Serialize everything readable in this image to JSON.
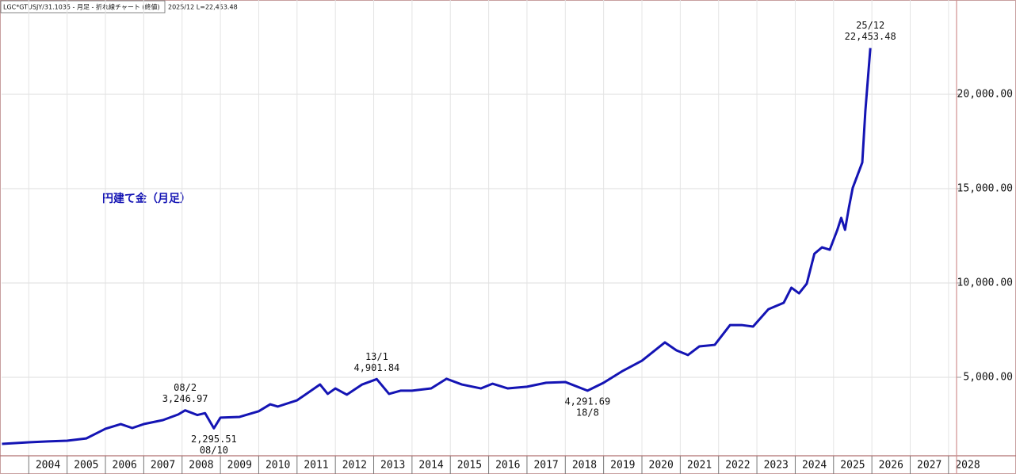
{
  "chart_data": {
    "type": "line",
    "header": "LGC*GTUSJY/31.1035 - 月足 - 折れ線チャート (終値)",
    "header_info": "2025/12 L=22,453.48",
    "title": "円建て金（月足）",
    "xlim": [
      2003.29,
      2028.21
    ],
    "xticks": [
      2004,
      2005,
      2006,
      2007,
      2008,
      2009,
      2010,
      2011,
      2012,
      2013,
      2014,
      2015,
      2016,
      2017,
      2018,
      2019,
      2020,
      2021,
      2022,
      2023,
      2024,
      2025,
      2026,
      2027,
      2028
    ],
    "ylim": [
      840,
      25000
    ],
    "yticks": [
      {
        "value": 5000,
        "label": "5,000.00"
      },
      {
        "value": 10000,
        "label": "10,000.00"
      },
      {
        "value": 15000,
        "label": "15,000.00"
      },
      {
        "value": 20000,
        "label": "20,000.00"
      }
    ],
    "grid": true,
    "series": [
      {
        "color": "#1414b4",
        "x": [
          2003.3,
          2004.0,
          2004.5,
          2005.0,
          2005.5,
          2006.0,
          2006.4,
          2006.7,
          2007.0,
          2007.5,
          2007.9,
          2008.08,
          2008.4,
          2008.6,
          2008.83,
          2009.0,
          2009.5,
          2010.0,
          2010.3,
          2010.5,
          2011.0,
          2011.6,
          2011.8,
          2012.0,
          2012.3,
          2012.7,
          2013.08,
          2013.4,
          2013.7,
          2014.0,
          2014.5,
          2014.9,
          2015.3,
          2015.8,
          2016.1,
          2016.5,
          2017.0,
          2017.5,
          2018.0,
          2018.58,
          2019.0,
          2019.5,
          2020.0,
          2020.6,
          2020.9,
          2021.2,
          2021.5,
          2021.9,
          2022.3,
          2022.6,
          2022.9,
          2023.3,
          2023.7,
          2023.9,
          2024.1,
          2024.3,
          2024.5,
          2024.7,
          2024.9,
          2025.1,
          2025.2,
          2025.3,
          2025.4,
          2025.5,
          2025.75,
          2025.83,
          2025.96
        ],
        "values": [
          1470,
          1555,
          1600,
          1640,
          1760,
          2270,
          2520,
          2310,
          2520,
          2730,
          3030,
          3246.97,
          3000,
          3100,
          2295.51,
          2860,
          2900,
          3200,
          3570,
          3450,
          3780,
          4620,
          4120,
          4410,
          4080,
          4620,
          4901.84,
          4120,
          4290,
          4290,
          4410,
          4920,
          4620,
          4410,
          4660,
          4410,
          4500,
          4710,
          4750,
          4291.69,
          4710,
          5340,
          5880,
          6850,
          6430,
          6180,
          6640,
          6720,
          7770,
          7770,
          7690,
          8610,
          8950,
          9750,
          9450,
          9960,
          11550,
          11890,
          11760,
          12820,
          13450,
          12820,
          13990,
          15040,
          16390,
          19120,
          22453.48
        ],
        "value_labels": [
          null,
          null,
          null,
          null,
          null,
          null,
          null,
          null,
          null,
          null,
          null,
          "3,246.97",
          null,
          null,
          "2,295.51",
          null,
          null,
          null,
          null,
          null,
          null,
          null,
          null,
          null,
          null,
          null,
          "4,901.84",
          null,
          null,
          null,
          null,
          null,
          null,
          null,
          null,
          null,
          null,
          null,
          null,
          "4,291.69",
          null,
          null,
          null,
          null,
          null,
          null,
          null,
          null,
          null,
          null,
          null,
          null,
          null,
          null,
          null,
          null,
          null,
          null,
          null,
          null,
          null,
          null,
          null,
          null,
          null,
          null,
          "22,453.48"
        ],
        "date_labels": [
          null,
          null,
          null,
          null,
          null,
          null,
          null,
          null,
          null,
          null,
          null,
          "08/2",
          null,
          null,
          "08/10",
          null,
          null,
          null,
          null,
          null,
          null,
          null,
          null,
          null,
          null,
          null,
          "13/1",
          null,
          null,
          null,
          null,
          null,
          null,
          null,
          null,
          null,
          null,
          null,
          null,
          "18/8",
          null,
          null,
          null,
          null,
          null,
          null,
          null,
          null,
          null,
          null,
          null,
          null,
          null,
          null,
          null,
          null,
          null,
          null,
          null,
          null,
          null,
          null,
          null,
          null,
          null,
          null,
          "25/12"
        ]
      }
    ]
  }
}
